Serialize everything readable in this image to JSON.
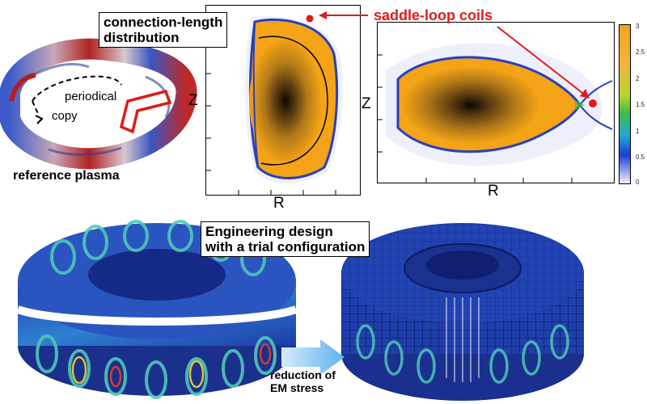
{
  "labels": {
    "connection_length": "connection-length\ndistribution",
    "saddle_loop": "saddle-loop coils",
    "periodical": "periodical",
    "copy": "copy",
    "reference_plasma": "reference plasma",
    "engineering": "Engineering design\nwith a trial configuration",
    "reduction": "reduction of\nEM stress"
  },
  "axes": {
    "left_plot": {
      "x": "R",
      "y": "Z"
    },
    "right_plot": {
      "x": "R",
      "y": "Z"
    }
  },
  "colorbar": {
    "ticks": [
      "3",
      "2.5",
      "2",
      "1.5",
      "1",
      "0.5",
      "0"
    ],
    "colors": [
      "#f7a21b",
      "#f2b43a",
      "#b5d62e",
      "#3fbf3f",
      "#22a6d6",
      "#1c3fd6",
      "#eef0ff"
    ]
  },
  "colors": {
    "red": "#e01a1a",
    "orange": "#f4a416",
    "plasma_blue": "#3b56c4",
    "mesh_blue": "#1f3fae"
  }
}
